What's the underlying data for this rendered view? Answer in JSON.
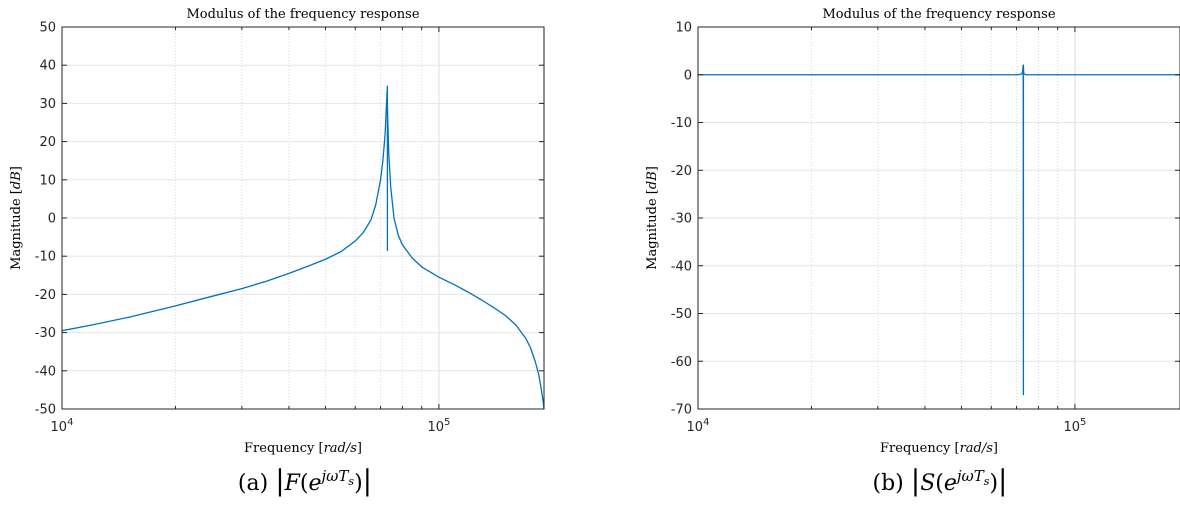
{
  "chart_data": [
    {
      "type": "line",
      "title": "Modulus of the frequency response",
      "xlabel": "Frequency",
      "xlabel_unit": "rad/s",
      "ylabel": "Magnitude",
      "ylabel_unit": "dB",
      "xscale": "log",
      "xlim": [
        10000,
        190000
      ],
      "ylim": [
        -50,
        50
      ],
      "yticks": [
        -50,
        -40,
        -30,
        -20,
        -10,
        0,
        10,
        20,
        30,
        40,
        50
      ],
      "xtick_labels": [
        {
          "value": 10000,
          "base": "10",
          "exp": "4"
        },
        {
          "value": 100000,
          "base": "10",
          "exp": "5"
        }
      ],
      "grid": true,
      "color": "#0072bd",
      "caption": {
        "prefix": "(a)",
        "func": "F",
        "arg_e": "e",
        "arg_exp": "jωT",
        "arg_sub": "s"
      },
      "series": [
        {
          "x": [
            10000,
            12000,
            15000,
            20000,
            25000,
            30000,
            35000,
            40000,
            45000,
            50000,
            55000,
            60000,
            63000,
            66000,
            68000,
            70000,
            71000,
            72000,
            72600,
            73000,
            73000,
            73000,
            73200,
            73600,
            74500,
            76000,
            78000,
            80000,
            85000,
            90000,
            100000,
            110000,
            120000,
            130000,
            140000,
            150000,
            160000,
            170000,
            175000,
            180000,
            184000,
            187000,
            189000,
            190000
          ],
          "y": [
            -29.5,
            -28.0,
            -26.0,
            -23.0,
            -20.5,
            -18.5,
            -16.5,
            -14.5,
            -12.6,
            -10.8,
            -8.8,
            -6.0,
            -3.8,
            -0.5,
            3.5,
            10,
            15,
            22,
            30,
            34.5,
            -8.5,
            30,
            25,
            17,
            8,
            0,
            -4.5,
            -7,
            -10.5,
            -12.8,
            -15.5,
            -17.5,
            -19.5,
            -21.5,
            -23.5,
            -25.5,
            -28,
            -31.5,
            -34,
            -37.5,
            -41,
            -45,
            -48,
            -50
          ]
        }
      ]
    },
    {
      "type": "line",
      "title": "Modulus of the frequency response",
      "xlabel": "Frequency",
      "xlabel_unit": "rad/s",
      "ylabel": "Magnitude",
      "ylabel_unit": "dB",
      "xscale": "log",
      "xlim": [
        10000,
        190000
      ],
      "ylim": [
        -70,
        10
      ],
      "yticks": [
        -70,
        -60,
        -50,
        -40,
        -30,
        -20,
        -10,
        0,
        10
      ],
      "xtick_labels": [
        {
          "value": 10000,
          "base": "10",
          "exp": "4"
        },
        {
          "value": 100000,
          "base": "10",
          "exp": "5"
        }
      ],
      "grid": true,
      "color": "#0072bd",
      "caption": {
        "prefix": "(b)",
        "func": "S",
        "arg_e": "e",
        "arg_exp": "jωT",
        "arg_sub": "s"
      },
      "series": [
        {
          "x": [
            10000,
            50000,
            70000,
            72000,
            72600,
            72900,
            73000,
            73000,
            73100,
            73300,
            74000,
            78000,
            100000,
            190000
          ],
          "y": [
            0,
            0,
            0,
            0.1,
            0.5,
            2,
            -67,
            2,
            0.6,
            0.2,
            0,
            0,
            0,
            0
          ]
        }
      ]
    }
  ]
}
